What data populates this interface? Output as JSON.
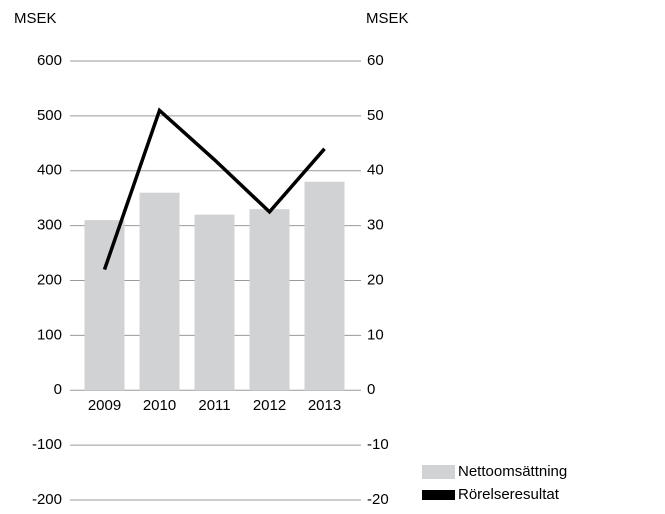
{
  "chart_data": {
    "type": "bar",
    "ylabel": "MSEK",
    "y2label": "MSEK",
    "categories": [
      "2009",
      "2010",
      "2011",
      "2012",
      "2013"
    ],
    "series": [
      {
        "name": "Nettoomsättning",
        "type": "bar",
        "color": "#d1d2d4",
        "values": [
          310,
          360,
          320,
          330,
          380
        ]
      },
      {
        "name": "Rörelseresultat",
        "type": "line",
        "axis": "y2",
        "color": "#000000",
        "values": [
          22,
          51,
          42,
          32.5,
          44
        ]
      }
    ],
    "ylim": [
      -200,
      600
    ],
    "yticks": [
      -200,
      -100,
      0,
      100,
      200,
      300,
      400,
      500,
      600
    ],
    "y2lim": [
      -20,
      60
    ],
    "y2ticks": [
      -20,
      -10,
      0,
      10,
      20,
      30,
      40,
      50,
      60
    ],
    "grid": true
  }
}
